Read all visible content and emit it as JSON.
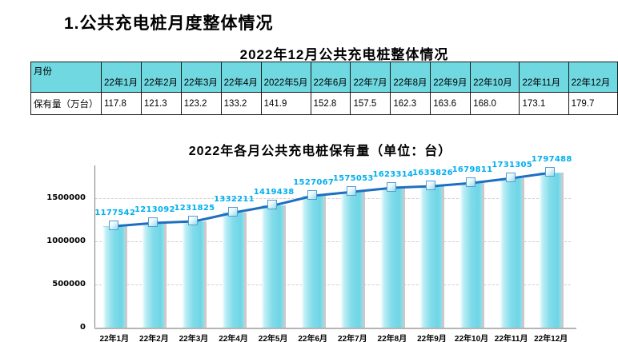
{
  "section_title": "1.公共充电桩月度整体情况",
  "table": {
    "title": "2022年12月公共充电桩整体情况",
    "corner_header": "月份",
    "row_header": "保有量（万台）",
    "columns": [
      "22年1月",
      "22年2月",
      "22年3月",
      "22年4月",
      "2022年5月",
      "22年6月",
      "22年7月",
      "22年8月",
      "22年9月",
      "22年10月",
      "22年11月",
      "22年12月"
    ],
    "values": [
      "117.8",
      "121.3",
      "123.2",
      "133.2",
      "141.9",
      "152.8",
      "157.5",
      "162.3",
      "163.6",
      "168.0",
      "173.1",
      "179.7"
    ],
    "header_bg": "#6fd8e1"
  },
  "chart_data": {
    "type": "bar",
    "title": "2022年各月公共充电桩保有量（单位：台）",
    "categories": [
      "22年1月",
      "22年2月",
      "22年3月",
      "22年4月",
      "22年5月",
      "22年6月",
      "22年7月",
      "22年8月",
      "22年9月",
      "22年10月",
      "22年11月",
      "22年12月"
    ],
    "values": [
      1177542,
      1213092,
      1231825,
      1332211,
      1419438,
      1527067,
      1575053,
      1623314,
      1635826,
      1679811,
      1731305,
      1797488
    ],
    "series_note": "bars with overlaid line markers showing the same monthly totals",
    "xlabel": "",
    "ylabel": "",
    "y_ticks": [
      0,
      500000,
      1000000,
      1500000
    ],
    "ylim": [
      0,
      1880000
    ],
    "grid": true,
    "legend": "none",
    "bar_color": "#7adcea",
    "line_color": "#1f6fc0",
    "marker_color": "#8fdcef",
    "label_color": "#00aeef"
  }
}
